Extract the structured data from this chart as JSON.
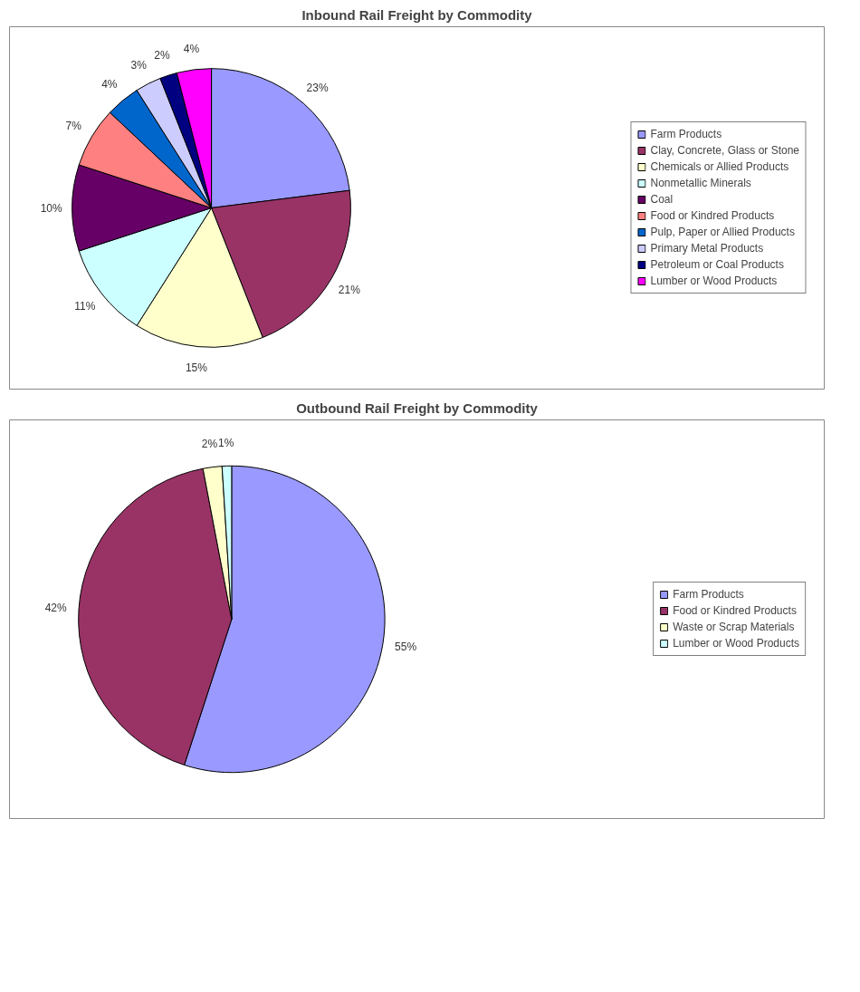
{
  "chart_data": [
    {
      "type": "pie",
      "title": "Inbound Rail Freight by Commodity",
      "categories": [
        "Farm Products",
        "Clay, Concrete, Glass or Stone",
        "Chemicals or Allied Products",
        "Nonmetallic Minerals",
        "Coal",
        "Food or Kindred Products",
        "Pulp, Paper or Allied Products",
        "Primary Metal Products",
        "Petroleum or Coal Products",
        "Lumber or Wood Products"
      ],
      "values": [
        23,
        21,
        15,
        11,
        10,
        7,
        4,
        3,
        2,
        4
      ],
      "value_labels": [
        "23%",
        "21%",
        "15%",
        "11%",
        "10%",
        "7%",
        "4%",
        "3%",
        "2%",
        "4%"
      ],
      "colors": [
        "#9999ff",
        "#993366",
        "#ffffcc",
        "#ccffff",
        "#660066",
        "#ff8080",
        "#0066cc",
        "#ccccff",
        "#000080",
        "#ff00ff"
      ],
      "legend": "right"
    },
    {
      "type": "pie",
      "title": "Outbound Rail Freight by Commodity",
      "categories": [
        "Farm Products",
        "Food or Kindred Products",
        "Waste or Scrap Materials",
        "Lumber or Wood Products"
      ],
      "values": [
        55,
        42,
        2,
        1
      ],
      "value_labels": [
        "55%",
        "42%",
        "2%",
        "1%"
      ],
      "colors": [
        "#9999ff",
        "#993366",
        "#ffffcc",
        "#ccffff"
      ],
      "legend": "right"
    }
  ]
}
